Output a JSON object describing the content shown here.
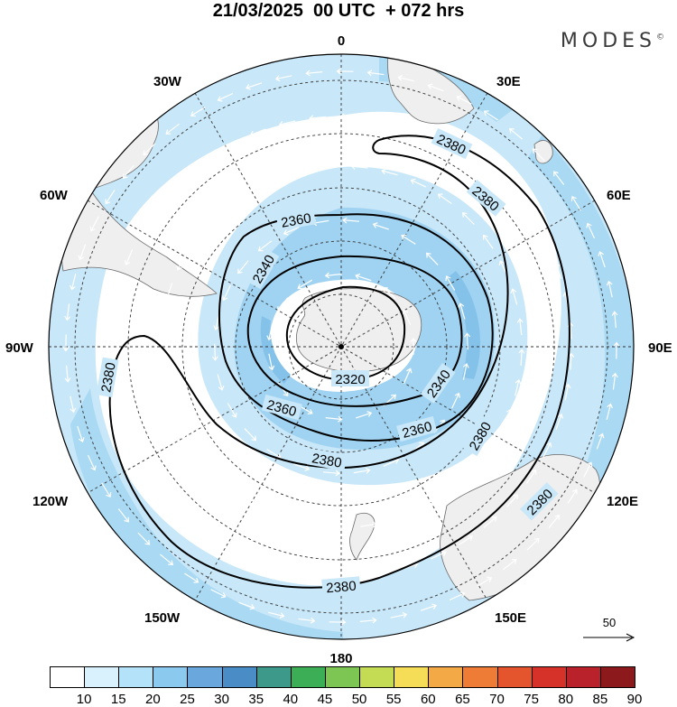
{
  "header": {
    "title": "21/03/2025  00 UTC  + 072 hrs",
    "brand": "MODES",
    "brand_mark": "©"
  },
  "map": {
    "projection": "south-polar-stereographic",
    "longitude_labels": {
      "top": "0",
      "bottom": "180",
      "left": "90W",
      "right": "90E",
      "upper_left_1": "30W",
      "upper_left_2": "60W",
      "upper_right_1": "30E",
      "upper_right_2": "60E",
      "lower_left_1": "120W",
      "lower_left_2": "150W",
      "lower_right_1": "120E",
      "lower_right_2": "150E"
    },
    "contour_labels": [
      {
        "id": "c2380a",
        "text": "2380"
      },
      {
        "id": "c2380b",
        "text": "2380"
      },
      {
        "id": "c2380c",
        "text": "2380"
      },
      {
        "id": "c2380d",
        "text": "2380"
      },
      {
        "id": "c2380e",
        "text": "2380"
      },
      {
        "id": "c2380f",
        "text": "2380"
      },
      {
        "id": "c2380g",
        "text": "2380"
      },
      {
        "id": "c2360a",
        "text": "2360"
      },
      {
        "id": "c2360b",
        "text": "2360"
      },
      {
        "id": "c2360c",
        "text": "2360"
      },
      {
        "id": "c2340a",
        "text": "2340"
      },
      {
        "id": "c2340b",
        "text": "2340"
      },
      {
        "id": "c2320a",
        "text": "2320"
      }
    ],
    "reference_vector_label": "50"
  },
  "colorbar": {
    "labels": [
      "10",
      "15",
      "20",
      "25",
      "30",
      "35",
      "40",
      "45",
      "50",
      "55",
      "60",
      "65",
      "70",
      "75",
      "80",
      "85",
      "90"
    ],
    "colors": [
      "#ffffff",
      "#d8f1fd",
      "#b4e2f8",
      "#8cc9ee",
      "#69a7dc",
      "#4a8cc6",
      "#3d9a8a",
      "#3cae56",
      "#7ec653",
      "#c3dc53",
      "#f6dd57",
      "#f2a946",
      "#ee7b36",
      "#e4552d",
      "#d63229",
      "#b9222a",
      "#8c1a1d"
    ]
  }
}
